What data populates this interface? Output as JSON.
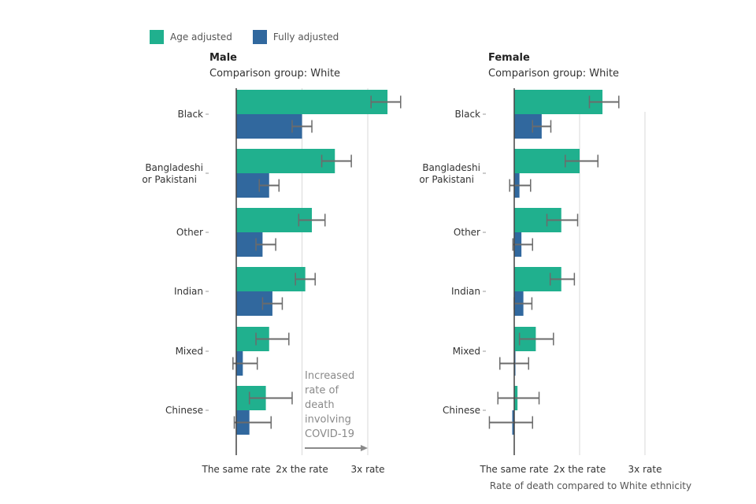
{
  "legend": {
    "items": [
      {
        "label": "Age adjusted",
        "color": "#20b08e"
      },
      {
        "label": "Fully adjusted",
        "color": "#31689e"
      }
    ]
  },
  "annotation": {
    "lines": [
      "Increased",
      "rate of",
      "death",
      "involving",
      "COVID-19"
    ]
  },
  "shared_xlabel": "Rate of death compared to White ethnicity",
  "chart_data": [
    {
      "type": "bar",
      "orientation": "horizontal",
      "title": "Male",
      "subtitle": "Comparison group: White",
      "categories": [
        "Black",
        "Bangladeshi or Pakistani",
        "Other",
        "Indian",
        "Mixed",
        "Chinese"
      ],
      "category_lines": [
        [
          "Black"
        ],
        [
          "Bangladeshi",
          "or Pakistani"
        ],
        [
          "Other"
        ],
        [
          "Indian"
        ],
        [
          "Mixed"
        ],
        [
          "Chinese"
        ]
      ],
      "xlim": [
        1,
        3.3
      ],
      "xticks": [
        1,
        2,
        3
      ],
      "xtick_labels": [
        "The same rate",
        "2x the rate",
        "3x rate"
      ],
      "grid": true,
      "series": [
        {
          "name": "Age adjusted",
          "color": "#20b08e",
          "values": [
            3.3,
            2.5,
            2.15,
            2.05,
            1.5,
            1.45
          ],
          "ci_low": [
            3.05,
            2.3,
            1.95,
            1.9,
            1.3,
            1.2
          ],
          "ci_high": [
            3.5,
            2.75,
            2.35,
            2.2,
            1.8,
            1.85
          ]
        },
        {
          "name": "Fully adjusted",
          "color": "#31689e",
          "values": [
            2.0,
            1.5,
            1.4,
            1.55,
            1.1,
            1.2
          ],
          "ci_low": [
            1.85,
            1.35,
            1.3,
            1.4,
            0.95,
            0.97
          ],
          "ci_high": [
            2.15,
            1.65,
            1.6,
            1.7,
            1.32,
            1.53
          ]
        }
      ]
    },
    {
      "type": "bar",
      "orientation": "horizontal",
      "title": "Female",
      "subtitle": "Comparison group: White",
      "categories": [
        "Black",
        "Bangladeshi or Pakistani",
        "Other",
        "Indian",
        "Mixed",
        "Chinese"
      ],
      "category_lines": [
        [
          "Black"
        ],
        [
          "Bangladeshi",
          "or Pakistani"
        ],
        [
          "Other"
        ],
        [
          "Indian"
        ],
        [
          "Mixed"
        ],
        [
          "Chinese"
        ]
      ],
      "xlim": [
        1,
        3
      ],
      "xticks": [
        1,
        2,
        3
      ],
      "xtick_labels": [
        "The same rate",
        "2x the rate",
        "3x rate"
      ],
      "xlabel": "Rate of death compared to White ethnicity",
      "grid": true,
      "series": [
        {
          "name": "Age adjusted",
          "color": "#20b08e",
          "values": [
            2.35,
            2.0,
            1.72,
            1.72,
            1.33,
            1.05
          ],
          "ci_low": [
            2.15,
            1.78,
            1.5,
            1.55,
            1.08,
            0.75
          ],
          "ci_high": [
            2.6,
            2.28,
            1.97,
            1.92,
            1.6,
            1.38
          ]
        },
        {
          "name": "Fully adjusted",
          "color": "#31689e",
          "values": [
            1.42,
            1.08,
            1.11,
            1.14,
            1.0,
            0.97
          ],
          "ci_low": [
            1.28,
            0.93,
            0.98,
            1.0,
            0.78,
            0.62
          ],
          "ci_high": [
            1.56,
            1.25,
            1.28,
            1.27,
            1.22,
            1.28
          ]
        }
      ]
    }
  ]
}
